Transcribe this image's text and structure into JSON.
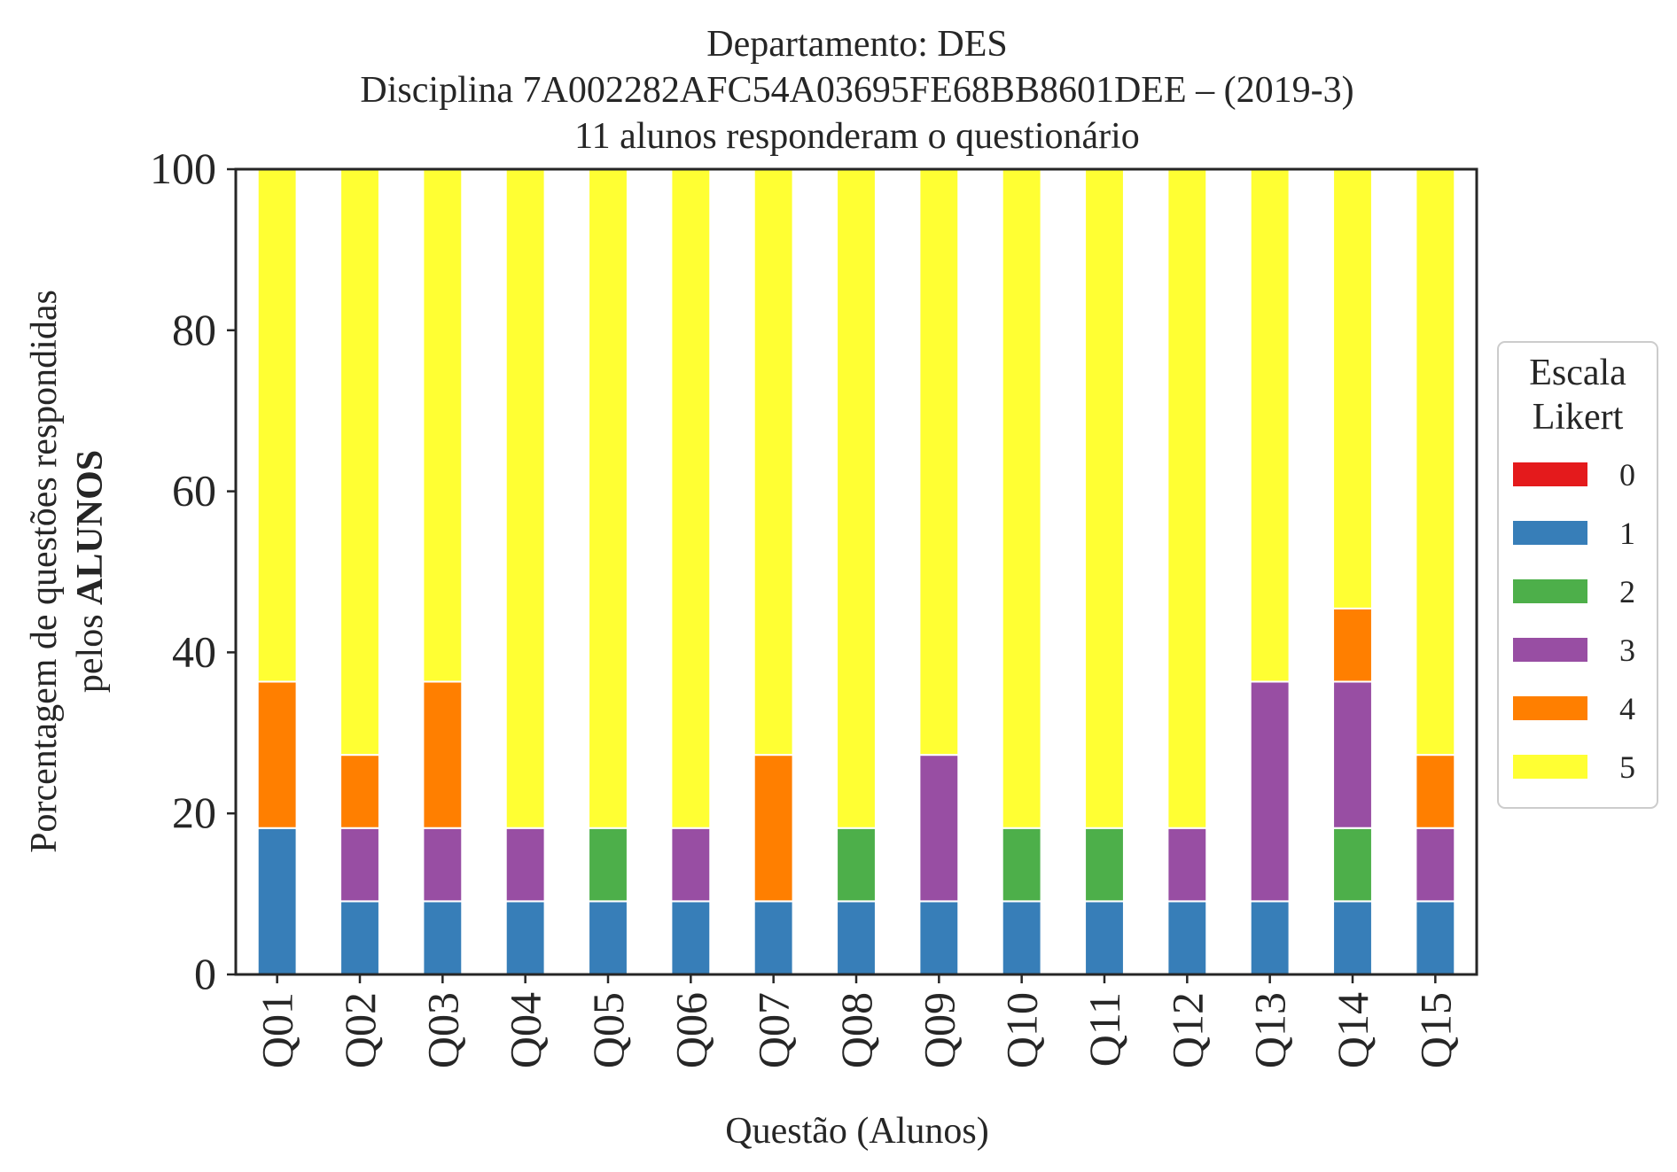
{
  "chart_data": {
    "type": "bar",
    "stacked": true,
    "title_lines": [
      "Departamento: DES",
      "Disciplina 7A002282AFC54A03695FE68BB8601DEE – (2019-3)",
      "11 alunos responderam o questionário"
    ],
    "xlabel": "Questão (Alunos)",
    "ylabel_line1": "Porcentagem de questões respondidas",
    "ylabel_line2_prefix": "pelos ",
    "ylabel_line2_bold": "ALUNOS",
    "ylim": [
      0,
      100
    ],
    "yticks": [
      "0",
      "20",
      "40",
      "60",
      "80",
      "100"
    ],
    "grid": false,
    "legend_position": "right",
    "legend_title_lines": [
      "Escala",
      "Likert"
    ],
    "categories": [
      "Q01",
      "Q02",
      "Q03",
      "Q04",
      "Q05",
      "Q06",
      "Q07",
      "Q08",
      "Q09",
      "Q10",
      "Q11",
      "Q12",
      "Q13",
      "Q14",
      "Q15"
    ],
    "series": [
      {
        "name": "0",
        "color": "#e41a1c",
        "values": [
          0,
          0,
          0,
          0,
          0,
          0,
          0,
          0,
          0,
          0,
          0,
          0,
          0,
          0,
          0
        ]
      },
      {
        "name": "1",
        "color": "#377eb8",
        "values": [
          18.18,
          9.09,
          9.09,
          9.09,
          9.09,
          9.09,
          9.09,
          9.09,
          9.09,
          9.09,
          9.09,
          9.09,
          9.09,
          9.09,
          9.09
        ]
      },
      {
        "name": "2",
        "color": "#4daf4a",
        "values": [
          0,
          0,
          0,
          0,
          9.09,
          0,
          0,
          9.09,
          0,
          9.09,
          9.09,
          0,
          0,
          9.09,
          0
        ]
      },
      {
        "name": "3",
        "color": "#984ea3",
        "values": [
          0,
          9.09,
          9.09,
          9.09,
          0,
          9.09,
          0,
          0,
          18.18,
          0,
          0,
          9.09,
          27.27,
          18.18,
          9.09
        ]
      },
      {
        "name": "4",
        "color": "#ff7f00",
        "values": [
          18.18,
          9.09,
          18.18,
          0,
          0,
          0,
          18.18,
          0,
          0,
          0,
          0,
          0,
          0,
          9.09,
          9.09
        ]
      },
      {
        "name": "5",
        "color": "#ffff33",
        "values": [
          63.64,
          72.73,
          63.64,
          81.82,
          81.82,
          81.82,
          72.73,
          81.82,
          72.73,
          81.82,
          81.82,
          81.82,
          63.64,
          54.55,
          72.73
        ]
      }
    ]
  }
}
